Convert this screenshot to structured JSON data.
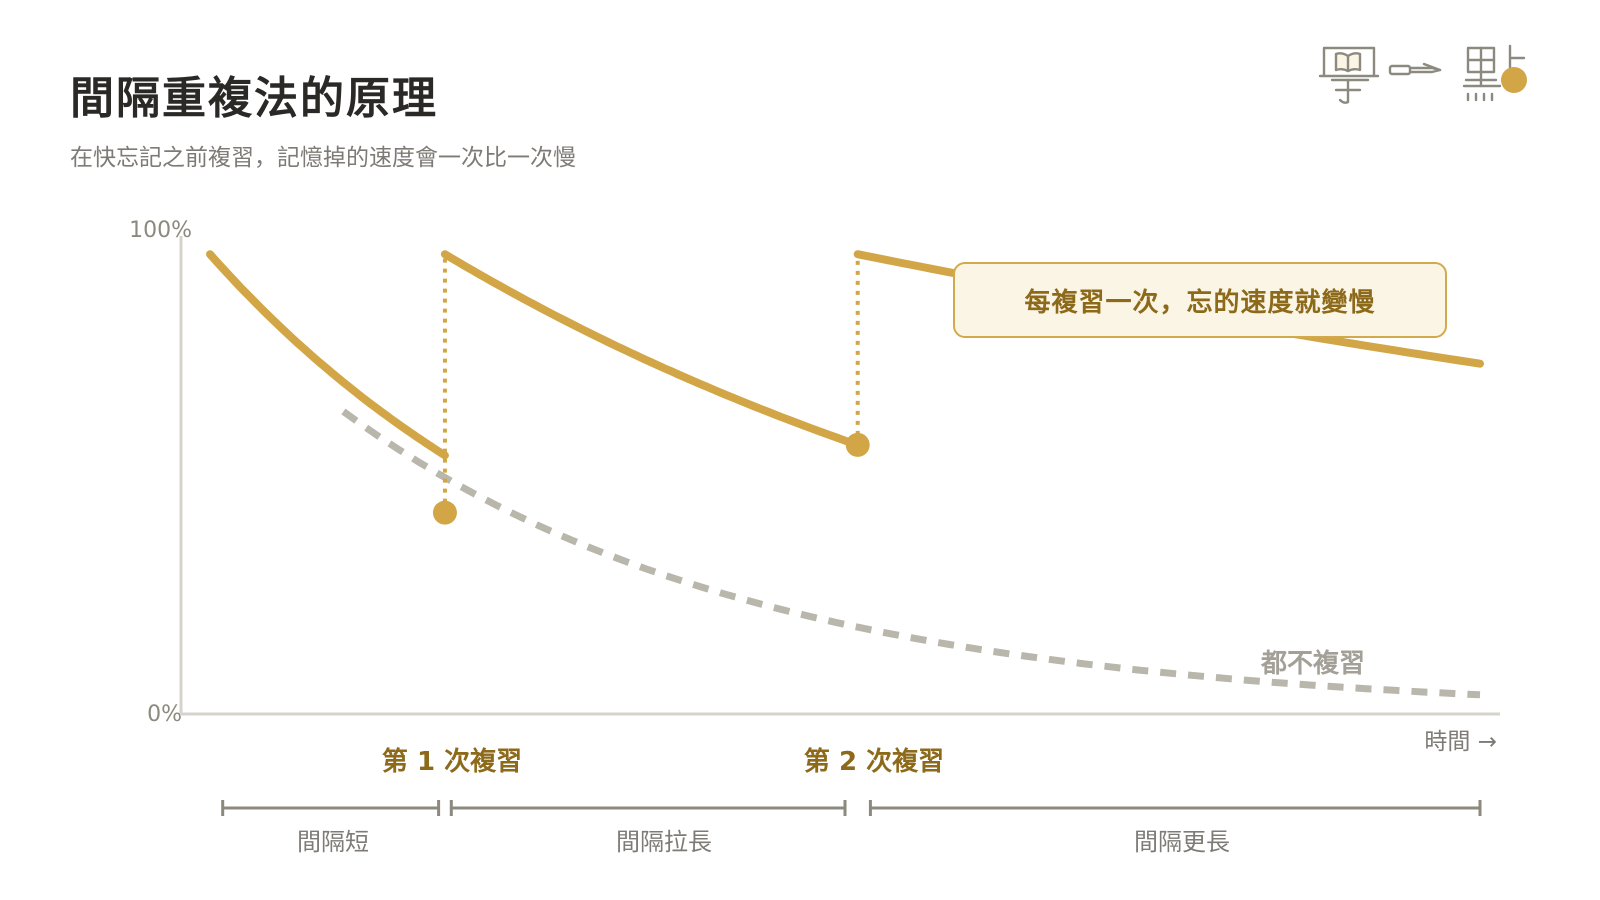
{
  "header": {
    "title": "間隔重複法的原理",
    "subtitle": "在快忘記之前複習，記憶掉的速度會一次比一次慢"
  },
  "logo": {
    "name": "學一點",
    "icons": [
      "book-icon",
      "pen-icon",
      "dot-icon"
    ]
  },
  "colors": {
    "accent": "#d2a646",
    "accent_dark": "#8d6a1a",
    "callout_bg": "#fbf5e6",
    "no_review": "#b9b6ac",
    "axis": "#d6d3cb",
    "interval_bar": "#8c897f",
    "text_gray": "#7e7b76",
    "title": "#2b2926"
  },
  "callout": {
    "text": "每複習一次，忘的速度就變慢"
  },
  "chart_data": {
    "type": "line",
    "y_axis": {
      "max_label": "100%",
      "min_label": "0%",
      "ylim": [
        0,
        100
      ]
    },
    "x_axis": {
      "label": "時間 →",
      "xlim": [
        0,
        100
      ]
    },
    "series": [
      {
        "name": "",
        "style": "solid",
        "segments": [
          {
            "x": [
              0,
              18.5
            ],
            "y": [
              95,
              41.6
            ],
            "k": 0.0311
          },
          {
            "x": [
              18.5,
              51
            ],
            "y": [
              95,
              55.6
            ],
            "k": 0.0165
          },
          {
            "x": [
              51,
              100
            ],
            "y": [
              95,
              72.4
            ],
            "k": 0.00555
          }
        ]
      },
      {
        "name": "都不複習",
        "style": "dashed",
        "segments": [
          {
            "x": [
              10.5,
              100
            ],
            "y": [
              62.5,
              2.9
            ],
            "k": 0.0308
          }
        ]
      }
    ],
    "review_points": [
      {
        "x": 18.5,
        "before": 41.6,
        "after": 95,
        "label": "第 1 次複習"
      },
      {
        "x": 51,
        "before": 55.6,
        "after": 95,
        "label": "第 2 次複習"
      }
    ],
    "intervals": [
      {
        "from": 1,
        "to": 18,
        "label": "間隔短"
      },
      {
        "from": 19,
        "to": 50,
        "label": "間隔拉長"
      },
      {
        "from": 52,
        "to": 100,
        "label": "間隔更長"
      }
    ]
  }
}
